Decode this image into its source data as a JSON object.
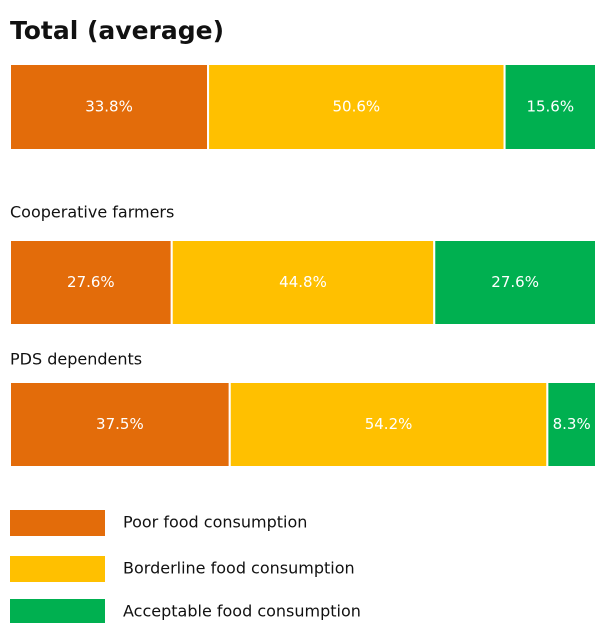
{
  "chart_data": {
    "type": "stacked-bar-100",
    "categories": [
      "Total (average)",
      "Cooperative farmers",
      "PDS dependents"
    ],
    "xlim": [
      0,
      100
    ],
    "series": [
      {
        "name": "Poor food consumption",
        "color": "#e36c0a",
        "values": [
          33.8,
          27.6,
          37.5
        ],
        "value_labels": [
          "33.8%",
          "27.6%",
          "37.5%"
        ]
      },
      {
        "name": "Borderline food consumption",
        "color": "#ffc000",
        "values": [
          50.6,
          44.8,
          54.2
        ],
        "value_labels": [
          "50.6%",
          "44.8%",
          "54.2%"
        ]
      },
      {
        "name": "Acceptable food consumption",
        "color": "#00b050",
        "values": [
          15.6,
          27.6,
          8.3
        ],
        "value_labels": [
          "15.6%",
          "27.6%",
          "8.3%"
        ]
      }
    ]
  }
}
